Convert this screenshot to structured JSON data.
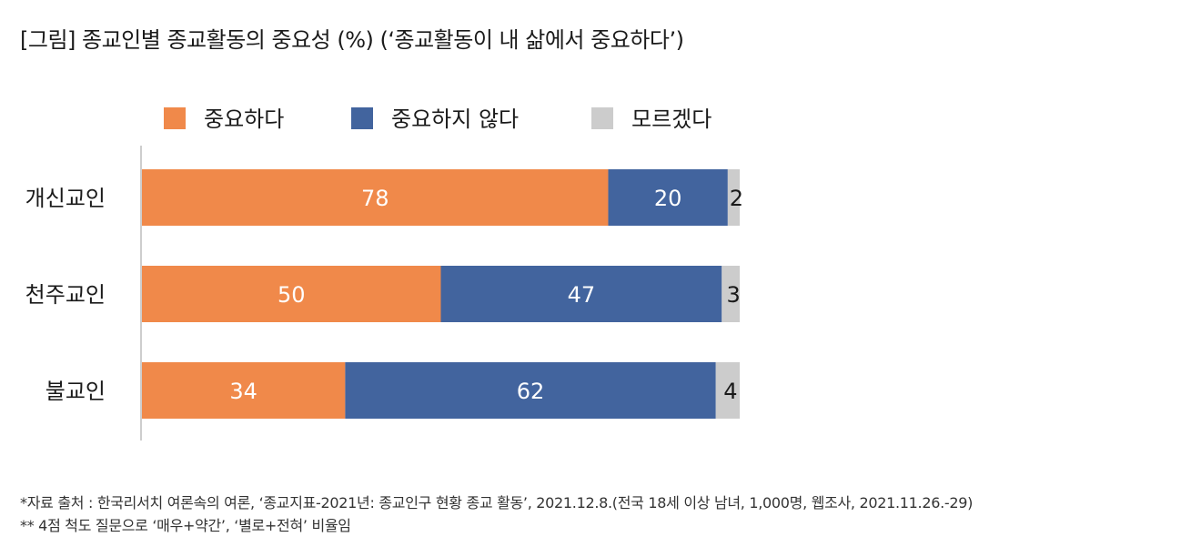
{
  "title": "[그림] 종교인별 종교활동의 중요성 (%) (‘종교활동이 내 삶에서 중요하다’)",
  "chart_data": {
    "type": "bar",
    "orientation": "horizontal",
    "stacked": true,
    "categories": [
      "개신교인",
      "천주교인",
      "불교인"
    ],
    "series": [
      {
        "name": "중요하다",
        "color": "#F0894A",
        "values": [
          78,
          50,
          34
        ]
      },
      {
        "name": "중요하지 않다",
        "color": "#42649E",
        "values": [
          20,
          47,
          62
        ]
      },
      {
        "name": "모르겠다",
        "color": "#CCCCCC",
        "values": [
          2,
          3,
          4
        ]
      }
    ],
    "xlim": [
      0,
      100
    ],
    "legend_position": "top",
    "grid": false
  },
  "footnotes": [
    "*자료 출처 : 한국리서치 여론속의 여론, ‘종교지표-2021년: 종교인구 현황 종교 활동’, 2021.12.8.(전국 18세 이상 남녀, 1,000명, 웹조사, 2021.11.26.-29)",
    "** 4점 척도 질문으로 ‘매우+약간’, ‘별로+전혀’ 비율임"
  ]
}
